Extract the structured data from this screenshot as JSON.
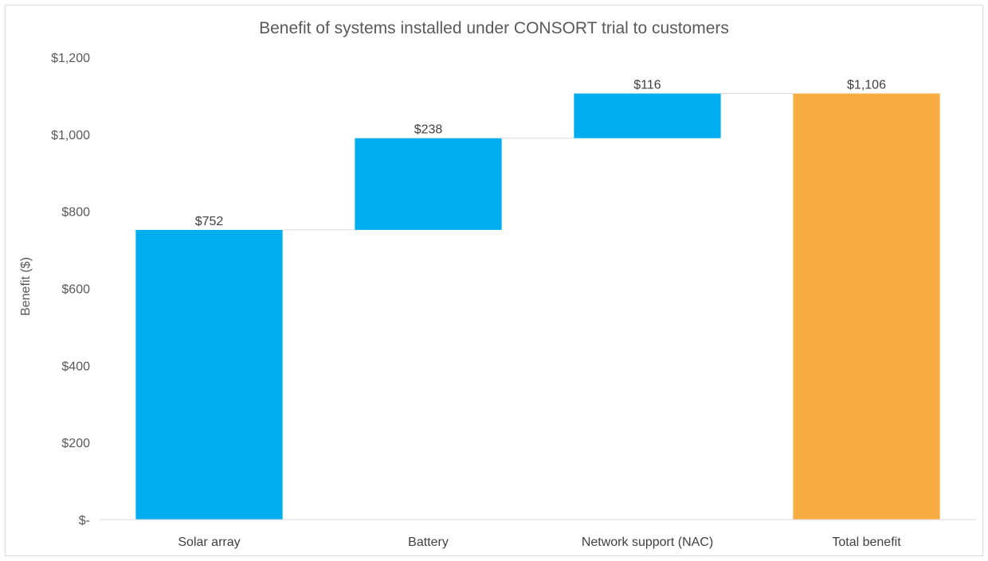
{
  "chart_data": {
    "type": "bar",
    "subtype": "waterfall",
    "title": "Benefit of systems installed under CONSORT trial to customers",
    "xlabel": "",
    "ylabel": "Benefit ($)",
    "ylim": [
      0,
      1200
    ],
    "yticks": [
      0,
      200,
      400,
      600,
      800,
      1000,
      1200
    ],
    "ytick_labels": [
      "$-",
      "$200",
      "$400",
      "$600",
      "$800",
      "$1,000",
      "$1,200"
    ],
    "categories": [
      "Solar array",
      "Battery",
      "Network support (NAC)",
      "Total benefit"
    ],
    "values": [
      752,
      238,
      116,
      1106
    ],
    "data_labels": [
      "$752",
      "$238",
      "$116",
      "$1,106"
    ],
    "bar_kinds": [
      "increase",
      "increase",
      "increase",
      "total"
    ],
    "grid": false,
    "legend": "none",
    "colors": {
      "increase": "#00AEEF",
      "total": "#F8AD43",
      "connector": "#d9d9d9",
      "axis": "#d9d9d9"
    }
  }
}
